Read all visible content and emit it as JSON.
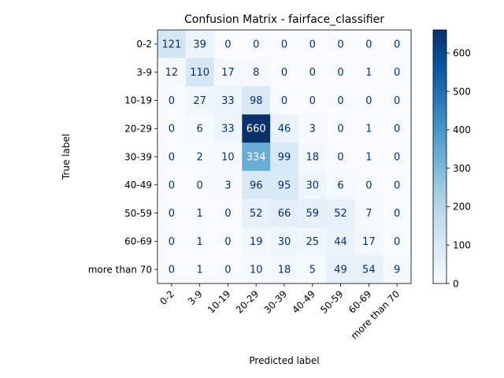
{
  "chart_data": {
    "type": "heatmap",
    "title": "Confusion Matrix - fairface_classifier",
    "xlabel": "Predicted label",
    "ylabel": "True label",
    "x_categories": [
      "0-2",
      "3-9",
      "10-19",
      "20-29",
      "30-39",
      "40-49",
      "50-59",
      "60-69",
      "more than 70"
    ],
    "y_categories": [
      "0-2",
      "3-9",
      "10-19",
      "20-29",
      "30-39",
      "40-49",
      "50-59",
      "60-69",
      "more than 70"
    ],
    "matrix": [
      [
        121,
        39,
        0,
        0,
        0,
        0,
        0,
        0,
        0
      ],
      [
        12,
        110,
        17,
        8,
        0,
        0,
        0,
        1,
        0
      ],
      [
        0,
        27,
        33,
        98,
        0,
        0,
        0,
        0,
        0
      ],
      [
        0,
        6,
        33,
        660,
        46,
        3,
        0,
        1,
        0
      ],
      [
        0,
        2,
        10,
        334,
        99,
        18,
        0,
        1,
        0
      ],
      [
        0,
        0,
        3,
        96,
        95,
        30,
        6,
        0,
        0
      ],
      [
        0,
        1,
        0,
        52,
        66,
        59,
        52,
        7,
        0
      ],
      [
        0,
        1,
        0,
        19,
        30,
        25,
        44,
        17,
        0
      ],
      [
        0,
        1,
        0,
        10,
        18,
        5,
        49,
        54,
        9
      ]
    ],
    "colormap": "Blues",
    "colorbar": {
      "min": 0,
      "max": 660,
      "ticks": [
        0,
        100,
        200,
        300,
        400,
        500,
        600
      ]
    },
    "x_tick_rotation_deg": 45
  }
}
